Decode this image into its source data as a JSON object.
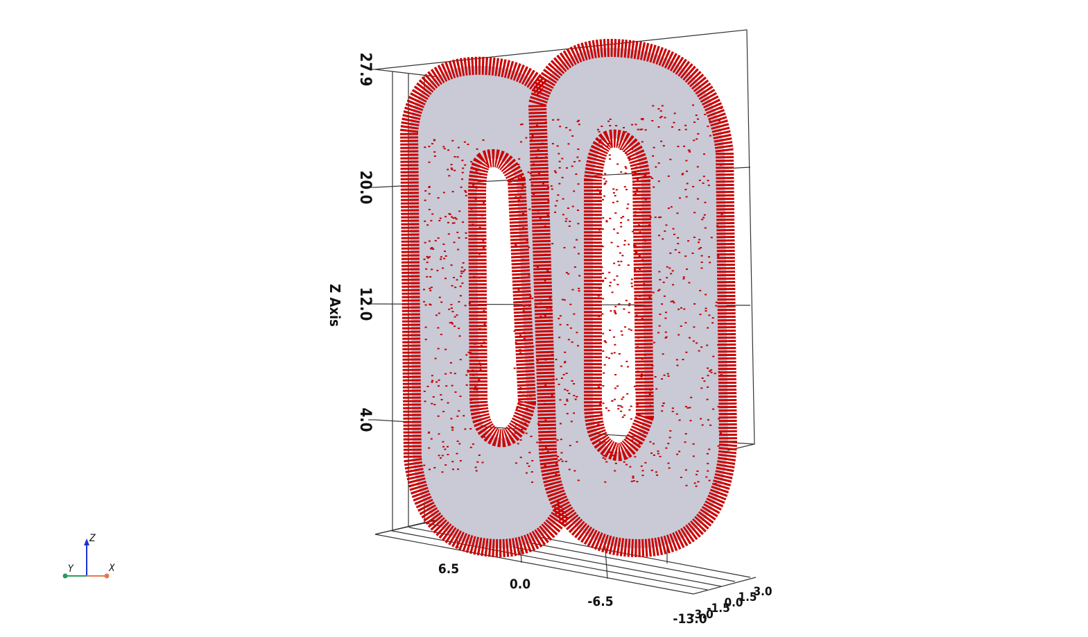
{
  "view": {
    "z_axis": {
      "title": "Z Axis",
      "ticks": [
        "4.0",
        "12.0",
        "20.0",
        "27.9"
      ]
    },
    "x_axis": {
      "ticks": [
        "6.5",
        "0.0",
        "-6.5",
        "-13.0"
      ]
    },
    "y_axis": {
      "ticks": [
        "-3.0",
        "-1.5",
        "0.0",
        "1.5",
        "3.0"
      ]
    },
    "orientation_triad": {
      "z": "Z",
      "y": "Y",
      "x": "X"
    },
    "colors": {
      "arrows": "#cc0000",
      "surface": "#c9cad6",
      "grid": "#333333",
      "triad_z": "#1f2fd6",
      "triad_x": "#e8784a",
      "triad_y": "#2a9a5a"
    }
  }
}
